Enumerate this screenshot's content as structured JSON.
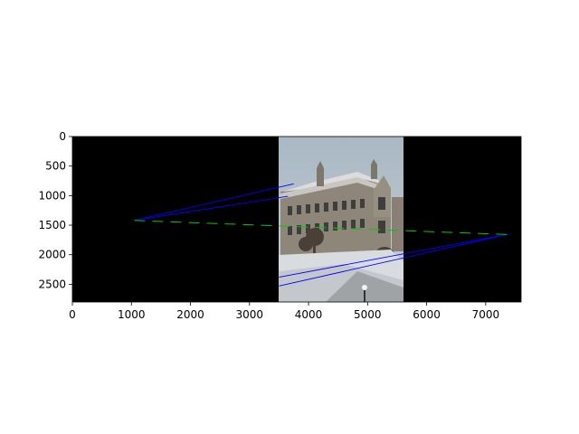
{
  "chart_data": {
    "type": "image",
    "title": "",
    "xlabel": "",
    "ylabel": "",
    "xlim": [
      0,
      7600
    ],
    "ylim": [
      2800,
      0
    ],
    "y_inverted": true,
    "x_ticks": [
      {
        "value": 0,
        "label": "0"
      },
      {
        "value": 1000,
        "label": "1000"
      },
      {
        "value": 2000,
        "label": "2000"
      },
      {
        "value": 3000,
        "label": "3000"
      },
      {
        "value": 4000,
        "label": "4000"
      },
      {
        "value": 5000,
        "label": "5000"
      },
      {
        "value": 6000,
        "label": "6000"
      },
      {
        "value": 7000,
        "label": "7000"
      }
    ],
    "y_ticks": [
      {
        "value": 0,
        "label": "0"
      },
      {
        "value": 500,
        "label": "500"
      },
      {
        "value": 1000,
        "label": "1000"
      },
      {
        "value": 1500,
        "label": "1500"
      },
      {
        "value": 2000,
        "label": "2000"
      },
      {
        "value": 2500,
        "label": "2500"
      }
    ],
    "regions": [
      {
        "name": "black-left",
        "x0": 0,
        "x1": 3500,
        "y0": 0,
        "y1": 2800,
        "color": "#000000"
      },
      {
        "name": "photo",
        "x0": 3500,
        "x1": 5600,
        "y0": 0,
        "y1": 2800,
        "color": "#b9c2c9"
      },
      {
        "name": "black-right",
        "x0": 5600,
        "x1": 7600,
        "y0": 0,
        "y1": 2800,
        "color": "#000000"
      }
    ],
    "blue_lines": [
      {
        "x1": 1050,
        "y1": 1420,
        "x2": 3750,
        "y2": 800
      },
      {
        "x1": 1050,
        "y1": 1420,
        "x2": 3650,
        "y2": 1010
      },
      {
        "x1": 7400,
        "y1": 1650,
        "x2": 3500,
        "y2": 2380
      },
      {
        "x1": 7400,
        "y1": 1650,
        "x2": 3500,
        "y2": 2530
      }
    ],
    "green_line": {
      "x1": 1050,
      "y1": 1420,
      "x2": 7400,
      "y2": 1660
    },
    "colors": {
      "blue": "#0000ff",
      "green": "#00cc00",
      "axis": "#000000"
    }
  }
}
